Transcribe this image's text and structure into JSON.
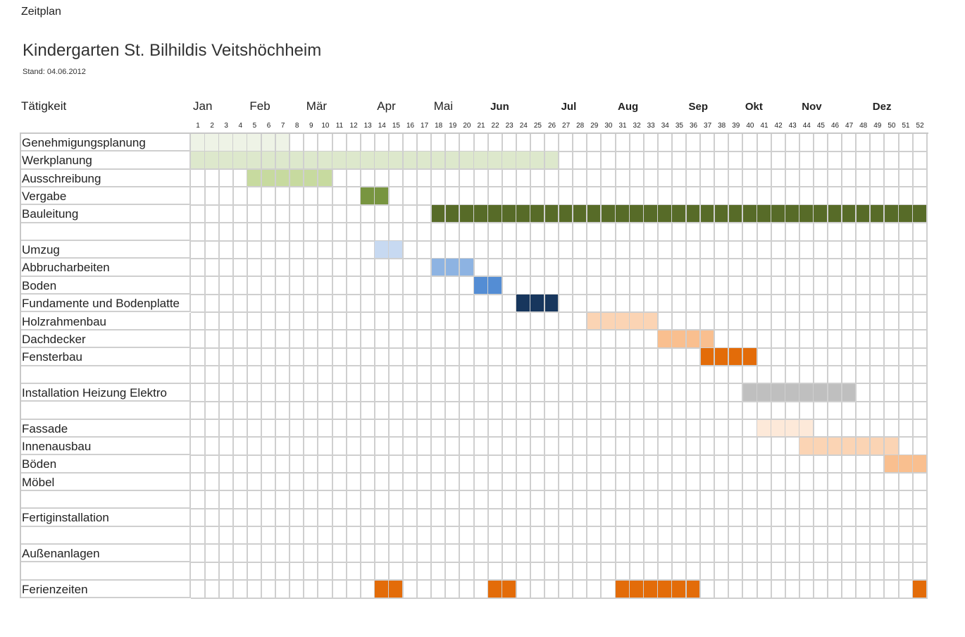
{
  "header": {
    "top_label": "Zeitplan",
    "title": "Kindergarten St. Bilhildis Veitshöchheim",
    "stand": "Stand: 04.06.2012",
    "column_header": "Tätigkeit"
  },
  "chart_data": {
    "type": "gantt",
    "x_unit": "calendar week",
    "weeks": [
      1,
      2,
      3,
      4,
      5,
      6,
      7,
      8,
      9,
      10,
      11,
      12,
      13,
      14,
      15,
      16,
      17,
      18,
      19,
      20,
      21,
      22,
      23,
      24,
      25,
      26,
      27,
      28,
      29,
      30,
      31,
      32,
      33,
      34,
      35,
      36,
      37,
      38,
      39,
      40,
      41,
      42,
      43,
      44,
      45,
      46,
      47,
      48,
      49,
      50,
      51,
      52
    ],
    "months": [
      {
        "label": "Jan",
        "week": 1,
        "bold": false
      },
      {
        "label": "Feb",
        "week": 5,
        "bold": false
      },
      {
        "label": "Mär",
        "week": 9,
        "bold": false
      },
      {
        "label": "Apr",
        "week": 14,
        "bold": false
      },
      {
        "label": "Mai",
        "week": 18,
        "bold": false
      },
      {
        "label": "Jun",
        "week": 22,
        "bold": true
      },
      {
        "label": "Jul",
        "week": 27,
        "bold": true
      },
      {
        "label": "Aug",
        "week": 31,
        "bold": true
      },
      {
        "label": "Sep",
        "week": 36,
        "bold": true
      },
      {
        "label": "Okt",
        "week": 40,
        "bold": true
      },
      {
        "label": "Nov",
        "week": 44,
        "bold": true
      },
      {
        "label": "Dez",
        "week": 49,
        "bold": true
      }
    ],
    "tasks": [
      {
        "label": "Genehmigungsplanung",
        "start": 1,
        "end": 7,
        "color": "#eef3e6"
      },
      {
        "label": "Werkplanung",
        "start": 1,
        "end": 26,
        "color": "#dde8cc"
      },
      {
        "label": "Ausschreibung",
        "start": 5,
        "end": 10,
        "color": "#c7da9f"
      },
      {
        "label": "Vergabe",
        "start": 13,
        "end": 14,
        "color": "#789540"
      },
      {
        "label": "Bauleitung",
        "start": 18,
        "end": 52,
        "color": "#576b28"
      },
      {
        "label": "",
        "start": null,
        "end": null,
        "color": null
      },
      {
        "label": "Umzug",
        "start": 14,
        "end": 15,
        "color": "#c7d9f1"
      },
      {
        "label": "Abbrucharbeiten",
        "start": 18,
        "end": 20,
        "color": "#8db3e2"
      },
      {
        "label": "Boden",
        "start": 21,
        "end": 22,
        "color": "#548dd4"
      },
      {
        "label": "Fundamente und Bodenplatte",
        "start": 24,
        "end": 26,
        "color": "#17365d"
      },
      {
        "label": "Holzrahmenbau",
        "start": 29,
        "end": 33,
        "color": "#fbd4b4"
      },
      {
        "label": "Dachdecker",
        "start": 34,
        "end": 37,
        "color": "#f9bf8f"
      },
      {
        "label": "Fensterbau",
        "start": 37,
        "end": 40,
        "color": "#e36c09"
      },
      {
        "label": "",
        "start": null,
        "end": null,
        "color": null
      },
      {
        "label": "Installation Heizung Elektro",
        "start": 40,
        "end": 47,
        "color": "#bfbfbf"
      },
      {
        "label": "",
        "start": null,
        "end": null,
        "color": null
      },
      {
        "label": "Fassade",
        "start": 41,
        "end": 44,
        "color": "#fde9d9"
      },
      {
        "label": "Innenausbau",
        "start": 44,
        "end": 50,
        "color": "#fbd4b4"
      },
      {
        "label": "Böden",
        "start": 50,
        "end": 52,
        "color": "#f9bf8f"
      },
      {
        "label": "Möbel",
        "start": null,
        "end": null,
        "color": null
      },
      {
        "label": "",
        "start": null,
        "end": null,
        "color": null
      },
      {
        "label": "Fertiginstallation",
        "start": null,
        "end": null,
        "color": null
      },
      {
        "label": "",
        "start": null,
        "end": null,
        "color": null
      },
      {
        "label": "Außenanlagen",
        "start": null,
        "end": null,
        "color": null
      },
      {
        "label": "",
        "start": null,
        "end": null,
        "color": null
      },
      {
        "label": "Ferienzeiten",
        "ranges": [
          [
            14,
            15
          ],
          [
            22,
            23
          ],
          [
            31,
            36
          ],
          [
            52,
            52
          ]
        ],
        "color": "#e36c09"
      }
    ]
  }
}
